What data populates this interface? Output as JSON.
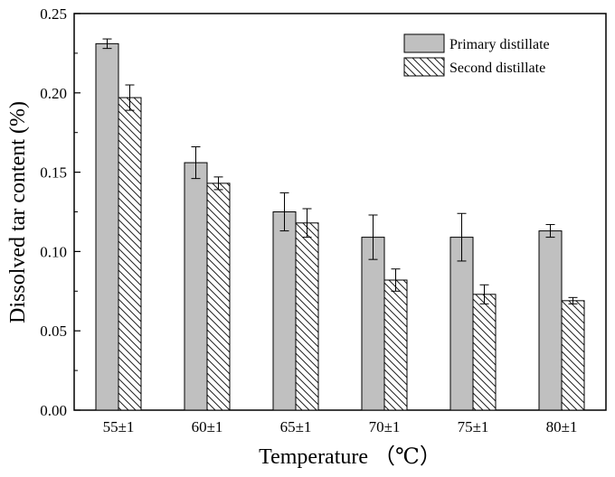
{
  "chart_data": {
    "type": "bar",
    "categories": [
      "55±1",
      "60±1",
      "65±1",
      "70±1",
      "75±1",
      "80±1"
    ],
    "series": [
      {
        "name": "Primary distillate",
        "values": [
          0.231,
          0.156,
          0.125,
          0.109,
          0.109,
          0.113
        ],
        "errors": [
          0.003,
          0.01,
          0.012,
          0.014,
          0.015,
          0.004
        ],
        "color": "#c0c0c0",
        "pattern": "solid"
      },
      {
        "name": "Second distillate",
        "values": [
          0.197,
          0.143,
          0.118,
          0.082,
          0.073,
          0.069
        ],
        "errors": [
          0.008,
          0.004,
          0.009,
          0.007,
          0.006,
          0.002
        ],
        "color": "#ffffff",
        "pattern": "hatch"
      }
    ],
    "xlabel": "Temperature （℃）",
    "ylabel": "Dissolved tar content (%)",
    "ylim": [
      0,
      0.25
    ],
    "yticks": [
      "0.00",
      "0.05",
      "0.10",
      "0.15",
      "0.20",
      "0.25"
    ],
    "legend_position": "top-right",
    "grid": false
  }
}
